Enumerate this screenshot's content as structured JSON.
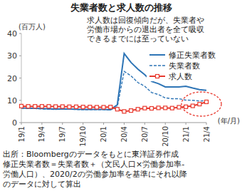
{
  "chart_data": {
    "type": "line",
    "title": "失業者数と求人数の推移",
    "y_label": "(百万人)",
    "x_label": "(年/月)",
    "annotation": [
      "求人数は回復傾向だが、失業者や",
      "労働市場からの退出者を全て吸収",
      "できるまでには至っていない"
    ],
    "notes": [
      "出所：Bloombergのデータをもとに東洋証券作成",
      "修正失業者数＝失業者数＋（文民人口×労働参加率-",
      "労働人口）、2020/2の労働参加率を基準にそれ以降",
      "のデータに対して算出"
    ],
    "categories": [
      "19/1",
      null,
      null,
      "19/4",
      null,
      null,
      "19/7",
      null,
      null,
      "19/10",
      null,
      null,
      "20/1",
      null,
      null,
      "20/4",
      null,
      null,
      "20/7",
      null,
      null,
      "20/10",
      null,
      null,
      "21/1",
      null,
      null,
      "21/4"
    ],
    "ylim": [
      0,
      40
    ],
    "yticks": [
      0,
      10,
      20,
      30,
      40
    ],
    "grid": false,
    "legend": "upper right",
    "series": [
      {
        "name": "修正失業者数",
        "color": "#2e75b6",
        "line_style": "solid",
        "values": [
          6.6,
          6.5,
          6.4,
          6.3,
          6.2,
          6.1,
          6.2,
          6.1,
          6.0,
          5.9,
          5.9,
          5.9,
          5.9,
          5.8,
          8.0,
          31.0,
          27.0,
          24.0,
          21.5,
          18.5,
          17.5,
          16.0,
          16.0,
          16.0,
          16.3,
          15.5,
          14.8,
          14.5
        ]
      },
      {
        "name": "失業者数",
        "color": "#2e75b6",
        "line_style": "dashed",
        "values": [
          6.5,
          6.3,
          6.3,
          6.1,
          6.0,
          5.9,
          6.1,
          6.0,
          5.9,
          5.8,
          5.8,
          5.8,
          5.8,
          5.7,
          7.1,
          23.0,
          21.0,
          18.0,
          16.3,
          13.5,
          12.6,
          11.1,
          10.7,
          10.7,
          10.1,
          10.0,
          9.7,
          9.8
        ]
      },
      {
        "name": "求人数",
        "color": "#e8392e",
        "line_style": "solid",
        "marker": "square",
        "values": [
          7.4,
          7.3,
          7.3,
          7.3,
          7.3,
          7.2,
          7.2,
          7.1,
          7.1,
          7.0,
          7.0,
          6.9,
          6.9,
          7.0,
          6.0,
          5.0,
          5.4,
          6.0,
          6.5,
          6.4,
          6.6,
          6.6,
          6.5,
          6.9,
          7.1,
          7.5,
          8.3,
          9.3
        ]
      }
    ]
  }
}
